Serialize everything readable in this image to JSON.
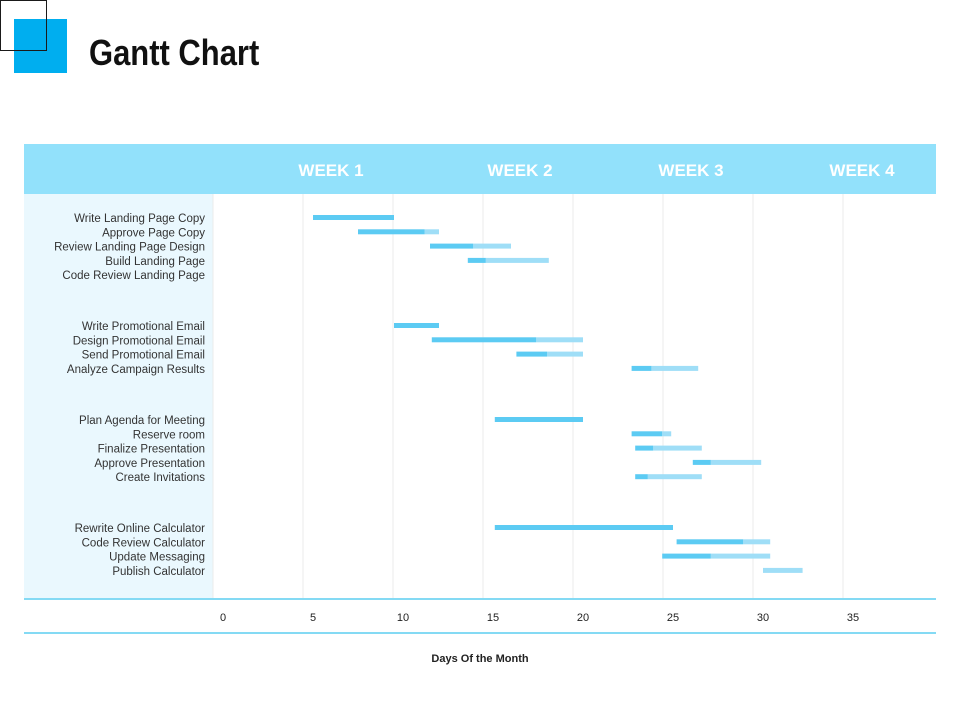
{
  "page": {
    "title": "Gantt Chart",
    "accent_color": "#00AEEF"
  },
  "chart_data": {
    "type": "bar",
    "subtype": "gantt",
    "title": "Gantt Chart",
    "xlabel": "Days Of the Month",
    "ylabel": "",
    "xlim": [
      0,
      39
    ],
    "xticks": [
      0,
      5,
      10,
      15,
      20,
      25,
      30,
      35
    ],
    "grid": true,
    "legend": "none",
    "weeks": [
      {
        "label": "WEEK 1",
        "center": 6
      },
      {
        "label": "WEEK 2",
        "center": 16.5
      },
      {
        "label": "WEEK 3",
        "center": 26
      },
      {
        "label": "WEEK 4",
        "center": 35.5
      }
    ],
    "colors": {
      "header_fill": "#92E1FB",
      "label_panel": "#EAF8FE",
      "bar_done": "#5CCBF3",
      "bar_remaining": "#9FDEF7",
      "axis_line": "#3BC3EE",
      "grid": "#EBEBEB"
    },
    "groups": [
      {
        "tasks": [
          {
            "name": "Write Landing Page Copy",
            "start": 5.0,
            "done_end": 9.5,
            "end": 9.5
          },
          {
            "name": "Approve Page Copy",
            "start": 7.5,
            "done_end": 11.2,
            "end": 12.0
          },
          {
            "name": "Review Landing Page Design",
            "start": 11.5,
            "done_end": 13.9,
            "end": 16.0
          },
          {
            "name": "Build Landing Page",
            "start": 13.6,
            "done_end": 14.6,
            "end": 18.1
          },
          {
            "name": "Code Review Landing Page"
          }
        ]
      },
      {
        "tasks": [
          {
            "name": "Write Promotional Email",
            "start": 9.5,
            "done_end": 12.0,
            "end": 12.0
          },
          {
            "name": "Design Promotional Email",
            "start": 11.6,
            "done_end": 17.4,
            "end": 20.0
          },
          {
            "name": "Send Promotional Email",
            "start": 16.3,
            "done_end": 18.0,
            "end": 20.0
          },
          {
            "name": "Analyze  Campaign Results",
            "start": 22.7,
            "done_end": 23.8,
            "end": 26.4
          }
        ]
      },
      {
        "tasks": [
          {
            "name": "Plan Agenda for Meeting",
            "start": 15.1,
            "done_end": 20.0,
            "end": 20.0
          },
          {
            "name": "Reserve room",
            "start": 22.7,
            "done_end": 24.4,
            "end": 24.9
          },
          {
            "name": "Finalize Presentation",
            "start": 22.9,
            "done_end": 23.9,
            "end": 26.6
          },
          {
            "name": "Approve Presentation",
            "start": 26.1,
            "done_end": 27.1,
            "end": 29.9
          },
          {
            "name": "Create Invitations",
            "start": 22.9,
            "done_end": 23.6,
            "end": 26.6
          }
        ]
      },
      {
        "tasks": [
          {
            "name": "Rewrite Online Calculator",
            "start": 15.1,
            "done_end": 25.0,
            "end": 25.0
          },
          {
            "name": "Code Review Calculator",
            "start": 25.2,
            "done_end": 28.9,
            "end": 30.4
          },
          {
            "name": "Update Messaging",
            "start": 24.4,
            "done_end": 27.1,
            "end": 30.4
          },
          {
            "name": "Publish Calculator",
            "start": 30.0,
            "done_end": 30.0,
            "end": 32.2
          }
        ]
      }
    ]
  }
}
